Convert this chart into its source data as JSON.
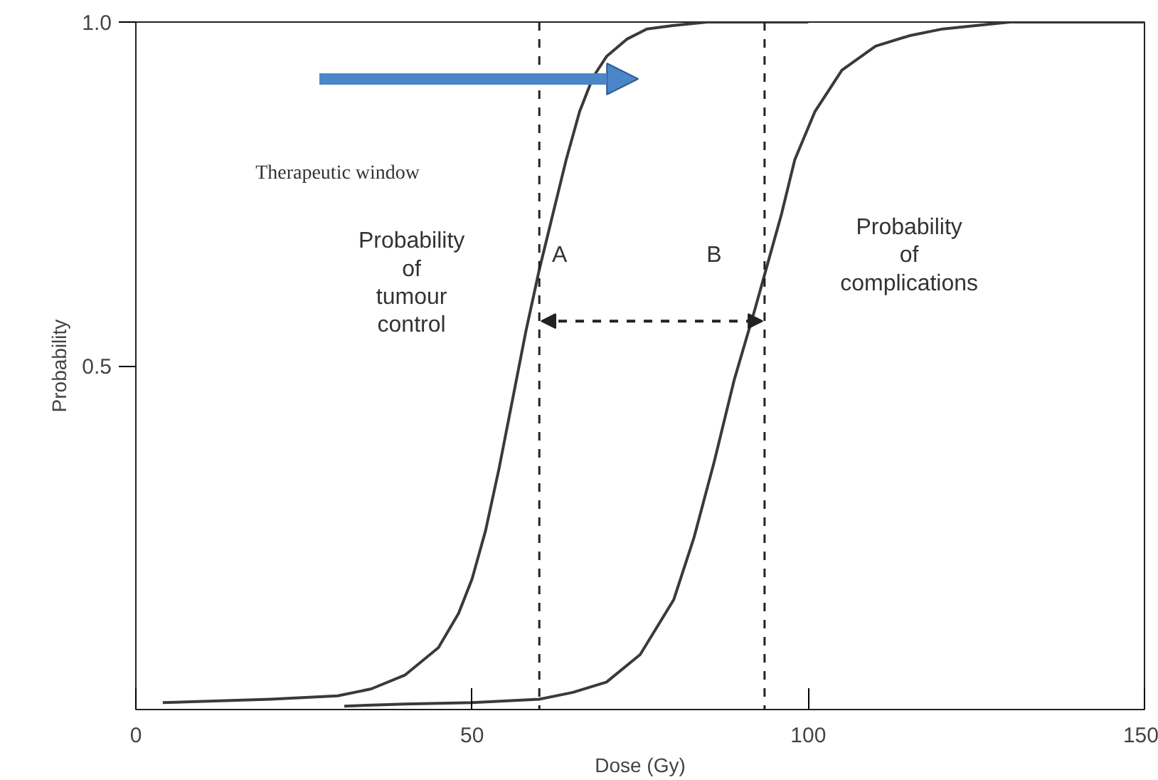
{
  "chart_data": {
    "type": "line",
    "xlabel": "Dose (Gy)",
    "ylabel": "Probability",
    "xlim": [
      0,
      150
    ],
    "ylim": [
      0,
      1
    ],
    "xticks": [
      0,
      50,
      100,
      150
    ],
    "yticks": [
      0.5,
      {
        "value": 1,
        "label": "1.0"
      }
    ],
    "grid": false,
    "marker": "none",
    "line_style": "solid",
    "series": [
      {
        "color": "#3a3a3a",
        "x": [
          4,
          10,
          20,
          30,
          35,
          40,
          45,
          48,
          50,
          52,
          54,
          56,
          58,
          60,
          62,
          64,
          66,
          68,
          70,
          73,
          76,
          80,
          85,
          90,
          100
        ],
        "values": [
          0.01,
          0.012,
          0.015,
          0.02,
          0.03,
          0.05,
          0.09,
          0.14,
          0.19,
          0.26,
          0.35,
          0.45,
          0.55,
          0.64,
          0.72,
          0.8,
          0.87,
          0.92,
          0.95,
          0.975,
          0.99,
          0.995,
          1.0,
          1.0,
          1.0
        ]
      },
      {
        "color": "#3a3a3a",
        "x": [
          31,
          40,
          50,
          60,
          65,
          70,
          75,
          80,
          83,
          86,
          89,
          92,
          94,
          96,
          98,
          101,
          105,
          110,
          115,
          120,
          130,
          140,
          150
        ],
        "values": [
          0.005,
          0.008,
          0.01,
          0.015,
          0.025,
          0.04,
          0.08,
          0.16,
          0.25,
          0.36,
          0.48,
          0.58,
          0.65,
          0.72,
          0.8,
          0.87,
          0.93,
          0.965,
          0.98,
          0.99,
          1.0,
          1.0,
          1.0
        ]
      }
    ],
    "ref_lines": [
      {
        "axis": "x",
        "value": 60,
        "color": "#222222",
        "line_style": "dashed"
      },
      {
        "axis": "x",
        "value": 93.5,
        "color": "#222222",
        "line_style": "dashed"
      }
    ],
    "annotations": [
      "Therapeutic window",
      "Probability\nof\ntumour\ncontrol",
      "A",
      "B",
      "Probability\nof\ncomplications"
    ]
  }
}
